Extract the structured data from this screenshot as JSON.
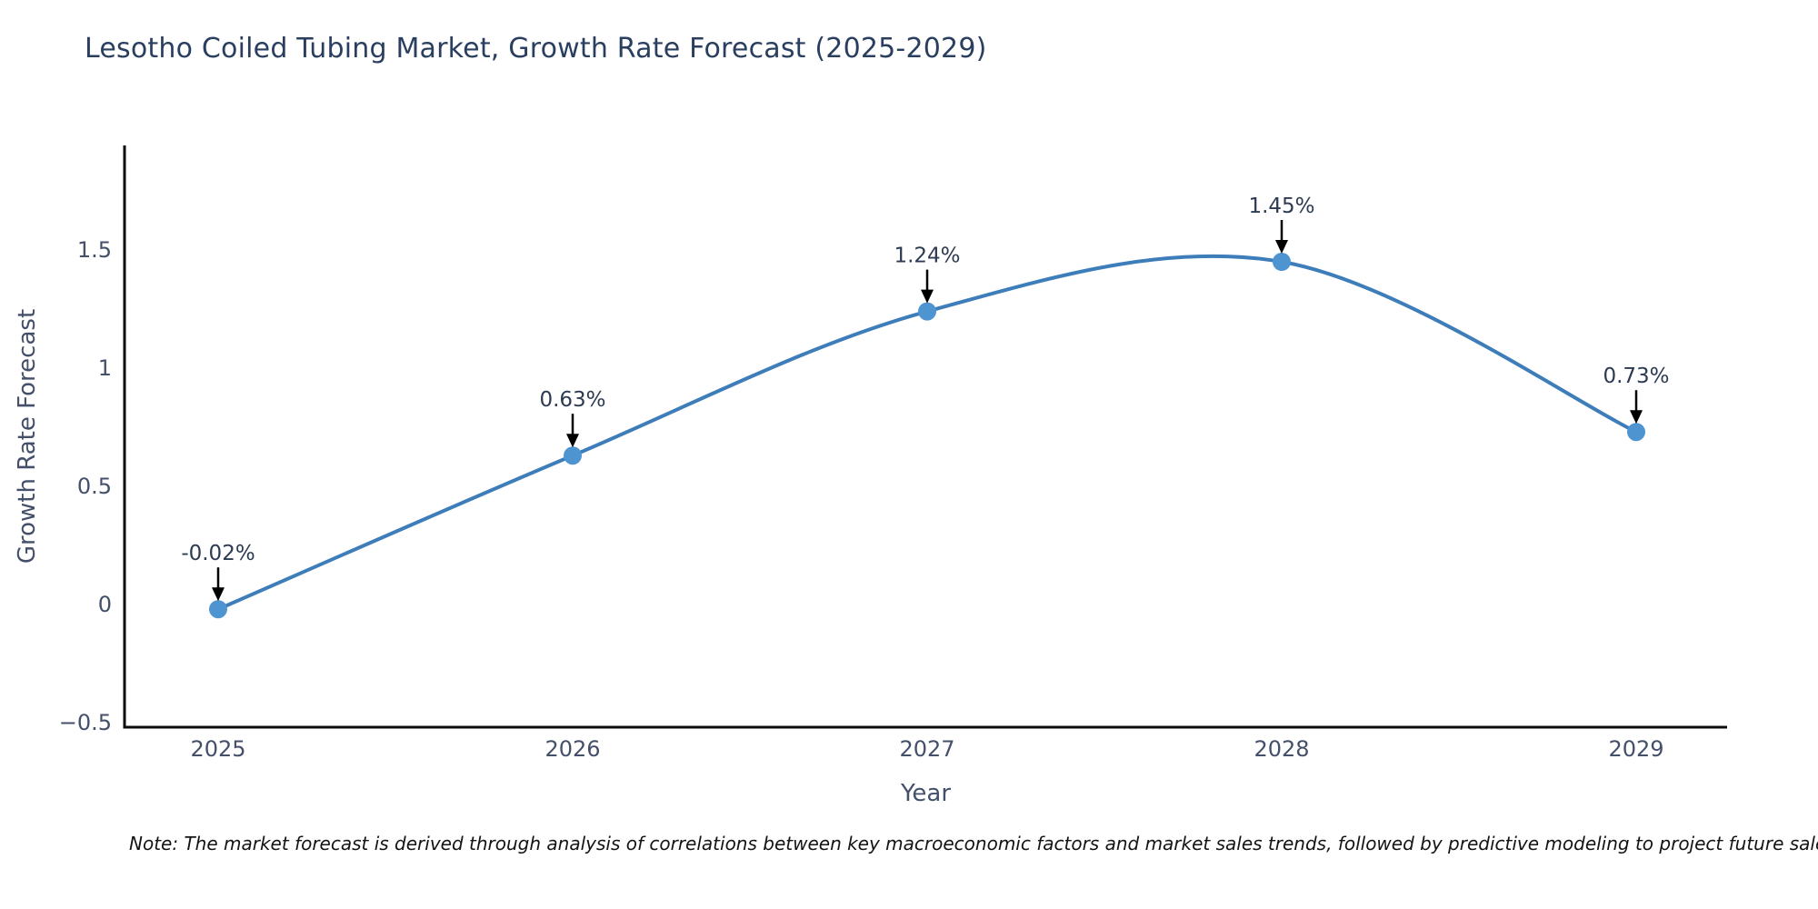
{
  "title": "Lesotho Coiled Tubing Market, Growth Rate Forecast (2025-2029)",
  "note": "Note: The market forecast is derived through analysis of correlations between key macroeconomic factors and market sales trends, followed by predictive modeling to project future sales",
  "chart_data": {
    "type": "line",
    "title": "Lesotho Coiled Tubing Market, Growth Rate Forecast (2025-2029)",
    "xlabel": "Year",
    "ylabel": "Growth Rate Forecast",
    "categories": [
      "2025",
      "2026",
      "2027",
      "2028",
      "2029"
    ],
    "series": [
      {
        "name": "Growth Rate Forecast",
        "values": [
          -0.02,
          0.63,
          1.24,
          1.45,
          0.73
        ],
        "point_labels": [
          "-0.02%",
          "0.63%",
          "1.24%",
          "1.45%",
          "0.73%"
        ]
      }
    ],
    "line_shape": "spline",
    "markers": true,
    "annotation_style": "label-above-with-down-arrow",
    "y_ticks": [
      -0.5,
      0,
      0.5,
      1,
      1.5
    ],
    "y_tick_labels": [
      "−0.5",
      "0",
      "0.5",
      "1",
      "1.5"
    ],
    "ylim": [
      -0.52,
      1.95
    ],
    "grid": false,
    "legend_position": "none",
    "colors": {
      "line": "#3d7db9",
      "marker": "#4e94d0",
      "arrow": "#000000",
      "axis_line": "#0b0b0b",
      "title_text": "#2a3f5f",
      "tick_text": "#44506a",
      "annotation_text": "#2c3a52",
      "note_text": "#141414",
      "background": "#ffffff"
    }
  }
}
